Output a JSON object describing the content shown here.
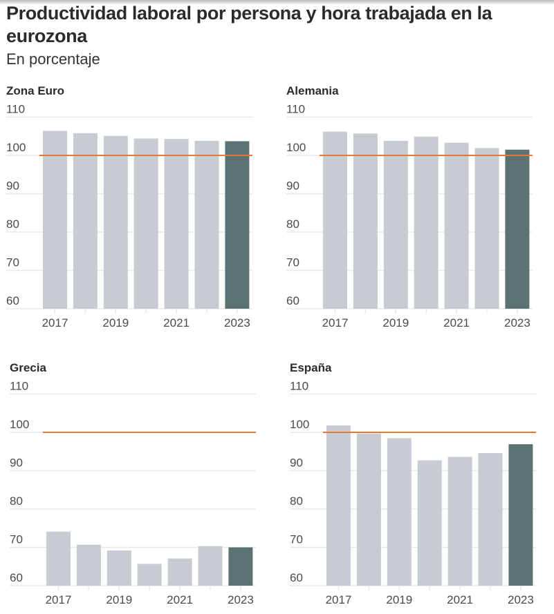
{
  "header": {
    "title": "Productividad laboral por persona y hora trabajada en la eurozona",
    "subtitle": "En porcentaje"
  },
  "colors": {
    "bar_default": "#c7ccd2",
    "bar_highlight": "#5b7473",
    "reference_line": "#e8782f",
    "gridline": "#e8e8e8",
    "text": "#333333"
  },
  "chart_data": [
    {
      "type": "bar",
      "title": "Zona Euro",
      "xlabel": "",
      "ylabel": "",
      "categories": [
        "2017",
        "2018",
        "2019",
        "2020",
        "2021",
        "2022",
        "2023"
      ],
      "x_tick_labels": [
        "2017",
        "2019",
        "2021",
        "2023"
      ],
      "values": [
        106.4,
        105.8,
        105.1,
        104.4,
        104.3,
        103.8,
        103.7
      ],
      "highlight_category": "2023",
      "reference_line": 100,
      "ylim": [
        60,
        110
      ],
      "yticks": [
        60,
        70,
        80,
        90,
        100,
        110
      ],
      "grid": true
    },
    {
      "type": "bar",
      "title": "Alemania",
      "xlabel": "",
      "ylabel": "",
      "categories": [
        "2017",
        "2018",
        "2019",
        "2020",
        "2021",
        "2022",
        "2023"
      ],
      "x_tick_labels": [
        "2017",
        "2019",
        "2021",
        "2023"
      ],
      "values": [
        106.2,
        105.7,
        103.8,
        104.9,
        103.3,
        101.9,
        101.5
      ],
      "highlight_category": "2023",
      "reference_line": 100,
      "ylim": [
        60,
        110
      ],
      "yticks": [
        60,
        70,
        80,
        90,
        100,
        110
      ],
      "grid": true
    },
    {
      "type": "bar",
      "title": "Grecia",
      "xlabel": "",
      "ylabel": "",
      "categories": [
        "2017",
        "2018",
        "2019",
        "2020",
        "2021",
        "2022",
        "2023"
      ],
      "x_tick_labels": [
        "2017",
        "2019",
        "2021",
        "2023"
      ],
      "values": [
        74.1,
        70.7,
        69.2,
        65.7,
        67.1,
        70.3,
        70.0
      ],
      "highlight_category": "2023",
      "reference_line": 100,
      "ylim": [
        60,
        110
      ],
      "yticks": [
        60,
        70,
        80,
        90,
        100,
        110
      ],
      "grid": true
    },
    {
      "type": "bar",
      "title": "España",
      "xlabel": "",
      "ylabel": "",
      "categories": [
        "2017",
        "2018",
        "2019",
        "2020",
        "2021",
        "2022",
        "2023"
      ],
      "x_tick_labels": [
        "2017",
        "2019",
        "2021",
        "2023"
      ],
      "values": [
        101.8,
        99.7,
        98.5,
        92.7,
        93.6,
        94.6,
        96.9
      ],
      "highlight_category": "2023",
      "reference_line": 100,
      "ylim": [
        60,
        110
      ],
      "yticks": [
        60,
        70,
        80,
        90,
        100,
        110
      ],
      "grid": true
    }
  ]
}
